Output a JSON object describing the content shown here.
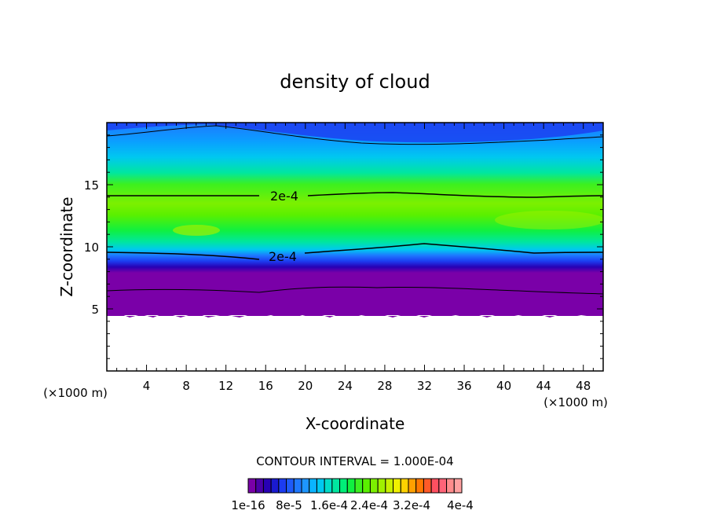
{
  "chart_data": {
    "type": "heatmap",
    "title": "density of cloud",
    "xlabel": "X-coordinate",
    "ylabel": "Z-coordinate",
    "x_unit_left": "(×1000 m)",
    "x_unit_right": "(×1000 m)",
    "xlim": [
      0,
      50
    ],
    "ylim": [
      0,
      20
    ],
    "xticks": [
      4,
      8,
      12,
      16,
      20,
      24,
      28,
      32,
      36,
      40,
      44,
      48
    ],
    "yticks": [
      5,
      10,
      15
    ],
    "contour_interval_text": "CONTOUR INTERVAL = 1.000E-04",
    "contour_labels": [
      {
        "text": "2e-4",
        "x": 17.3,
        "z": 14.0
      },
      {
        "text": "2e-4",
        "x": 17.3,
        "z": 9.3
      }
    ],
    "cloud_layer": {
      "base_z": 4.5,
      "top_z": 19.8,
      "max_density_band_z": [
        10,
        14
      ]
    },
    "colorbar": {
      "colors": [
        "#7a00a8",
        "#4b00a8",
        "#2800b4",
        "#1a1ad0",
        "#1c3cf0",
        "#1e5af8",
        "#1e78ff",
        "#1e96ff",
        "#0ab4ff",
        "#00c8f0",
        "#00dcc8",
        "#00e6a0",
        "#00ee78",
        "#10f040",
        "#3cf020",
        "#5af000",
        "#7cf000",
        "#a0f000",
        "#c8f000",
        "#f0f000",
        "#ffd200",
        "#ffa000",
        "#ff7800",
        "#ff5a28",
        "#ff5060",
        "#ff6478",
        "#ff8c8c",
        "#ffa0a0"
      ],
      "tick_labels": [
        "1e-16",
        "8e-5",
        "1.6e-4",
        "2.4e-4",
        "3.2e-4",
        "4e-4"
      ]
    }
  }
}
